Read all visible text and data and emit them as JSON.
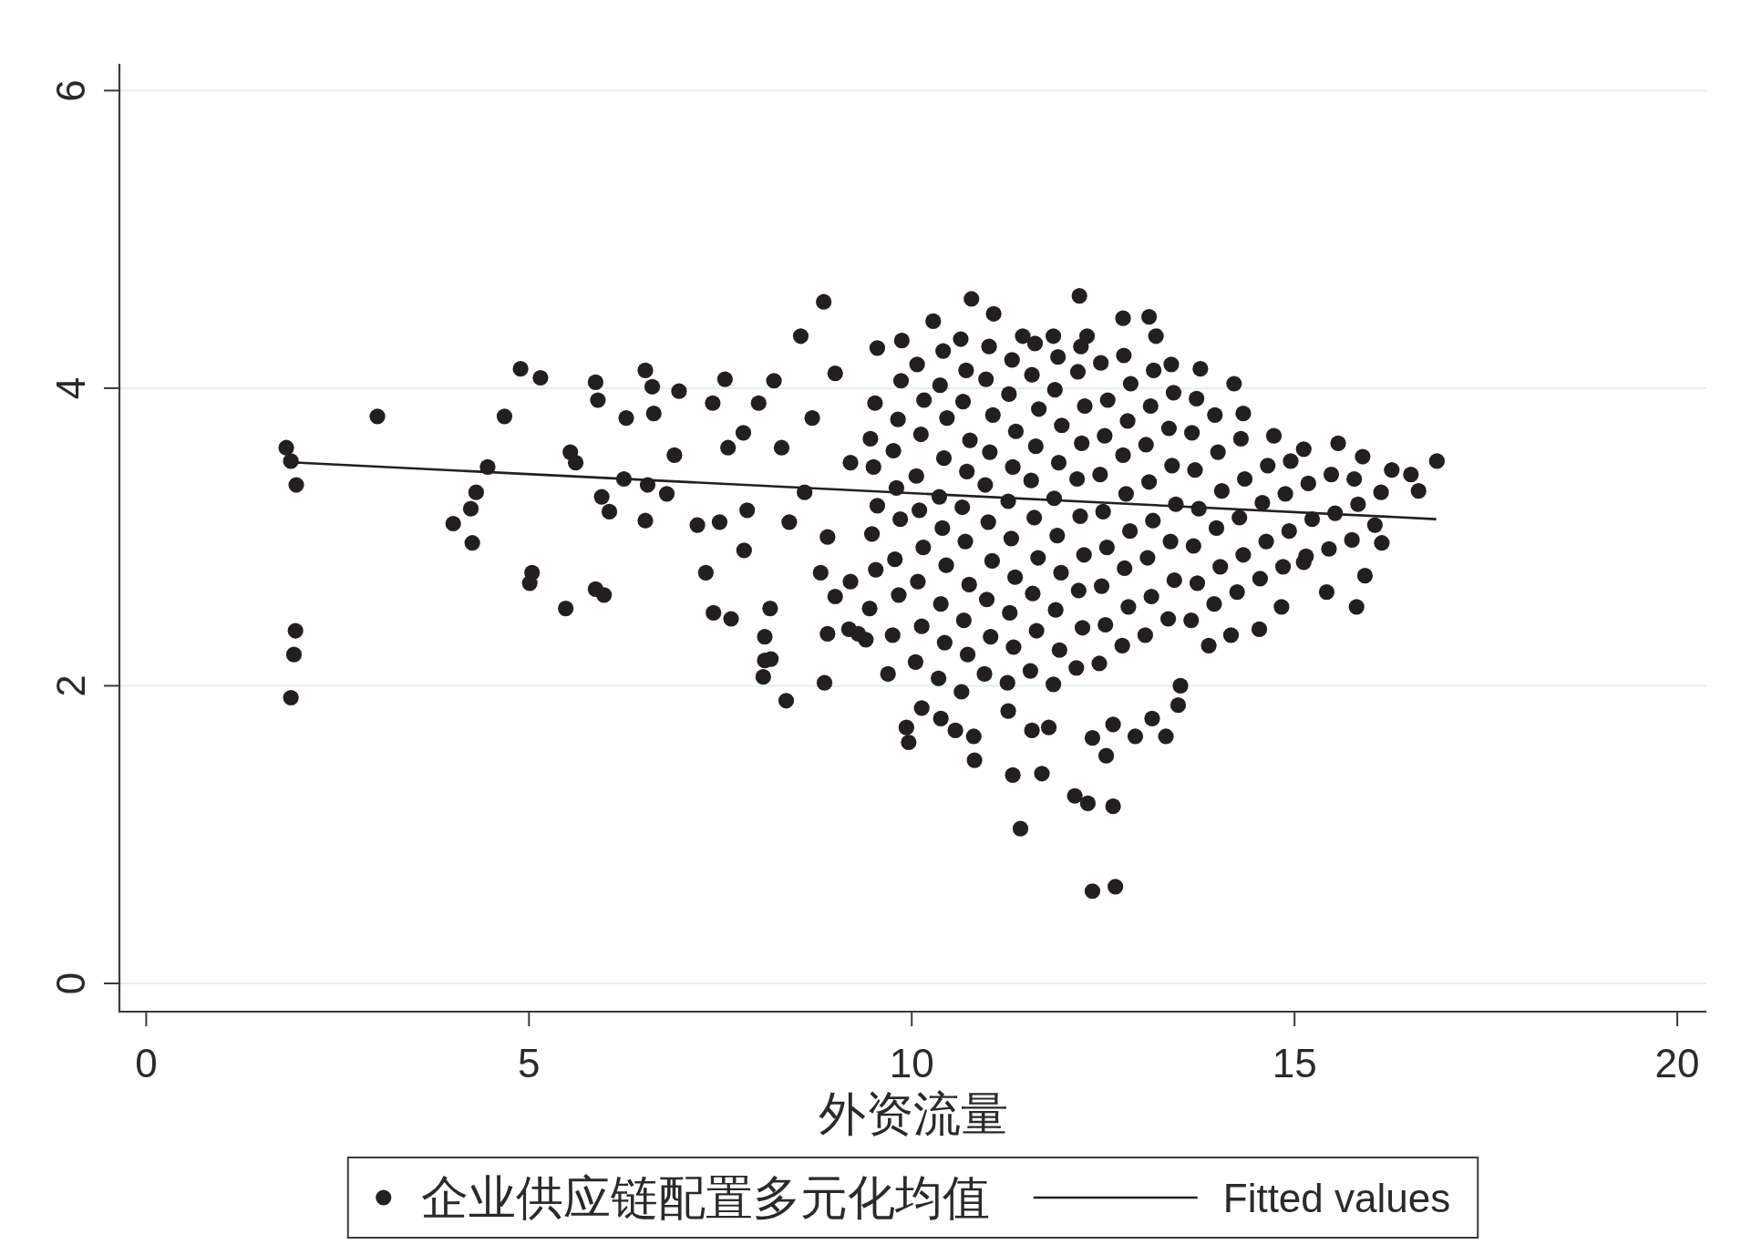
{
  "chart_data": {
    "type": "scatter",
    "xlabel": "外资流量",
    "xlim": [
      -0.35,
      20.38
    ],
    "ylim": [
      -0.19,
      6.18
    ],
    "xticks": [
      0,
      5,
      10,
      15,
      20
    ],
    "yticks": [
      0,
      2,
      4,
      6
    ],
    "grid": "y",
    "legend": "bottom",
    "series": [
      {
        "name": "企业供应链配置多元化均值",
        "type": "scatter",
        "marker": "circle",
        "color": "#231f20",
        "x": [
          1.83,
          1.89,
          1.96,
          1.95,
          1.93,
          1.89,
          3.02,
          4.01,
          4.24,
          4.31,
          4.46,
          4.26,
          4.68,
          4.89,
          5.15,
          5.01,
          5.04,
          5.48,
          5.54,
          5.61,
          5.87,
          5.9,
          5.87,
          5.98,
          5.95,
          6.05,
          6.24,
          6.27,
          6.52,
          6.61,
          6.63,
          6.52,
          6.55,
          6.9,
          6.96,
          6.8,
          7.31,
          7.41,
          7.64,
          7.2,
          7.56,
          7.49,
          8.06,
          8.08,
          8.15,
          8.36,
          8.16,
          8.08,
          8.85,
          8.86,
          7.81,
          7.85,
          8.55,
          8.0,
          8.3,
          8.6,
          8.9,
          9.2,
          8.2,
          8.7,
          9.0,
          9.2,
          7.8,
          8.4,
          9.0,
          7.4,
          7.6,
          8.9,
          9.3,
          9.55,
          9.87,
          10.28,
          10.78,
          11.07,
          11.45,
          11.85,
          12.19,
          12.29,
          12.76,
          13.1,
          13.19,
          13.39,
          13.77,
          14.21,
          14.33,
          14.73,
          15.12,
          15.57,
          15.89,
          16.27,
          16.52,
          16.86,
          16.62,
          16.14,
          15.92,
          15.81,
          15.42,
          15.12,
          14.83,
          14.54,
          14.17,
          13.88,
          13.51,
          13.48,
          13.32,
          13.14,
          12.92,
          12.63,
          12.63,
          12.66,
          12.36,
          12.3,
          12.13,
          12.54,
          12.36,
          11.7,
          11.42,
          11.32,
          11.57,
          11.79,
          11.26,
          10.82,
          10.81,
          10.57,
          10.38,
          10.13,
          9.96,
          9.93,
          9.69,
          9.4,
          9.18,
          8.81,
          9.45,
          9.53,
          9.48,
          9.55,
          9.5,
          9.46,
          9.52,
          9.75,
          9.83,
          9.78,
          9.85,
          9.8,
          9.76,
          9.82,
          9.86,
          10.05,
          10.13,
          10.08,
          10.15,
          10.1,
          10.06,
          10.12,
          10.16,
          10.07,
          10.35,
          10.43,
          10.38,
          10.45,
          10.4,
          10.36,
          10.42,
          10.46,
          10.37,
          10.41,
          10.65,
          10.73,
          10.68,
          10.75,
          10.7,
          10.66,
          10.72,
          10.76,
          10.67,
          10.71,
          10.64,
          10.95,
          11.03,
          10.98,
          11.05,
          11.0,
          10.96,
          11.02,
          11.06,
          10.97,
          11.01,
          11.25,
          11.33,
          11.28,
          11.35,
          11.3,
          11.26,
          11.32,
          11.36,
          11.27,
          11.31,
          11.55,
          11.63,
          11.58,
          11.65,
          11.6,
          11.56,
          11.62,
          11.66,
          11.57,
          11.61,
          11.85,
          11.93,
          11.88,
          11.95,
          11.9,
          11.86,
          11.92,
          11.96,
          11.87,
          11.91,
          12.15,
          12.23,
          12.18,
          12.25,
          12.2,
          12.16,
          12.22,
          12.26,
          12.17,
          12.21,
          12.45,
          12.53,
          12.48,
          12.55,
          12.5,
          12.46,
          12.52,
          12.56,
          12.47,
          12.75,
          12.83,
          12.78,
          12.85,
          12.8,
          12.76,
          12.82,
          12.86,
          12.77,
          13.05,
          13.13,
          13.08,
          13.15,
          13.1,
          13.06,
          13.12,
          13.16,
          13.35,
          13.43,
          13.38,
          13.45,
          13.4,
          13.36,
          13.42,
          13.65,
          13.73,
          13.68,
          13.75,
          13.7,
          13.66,
          13.72,
          13.95,
          14.03,
          13.98,
          14.05,
          14.0,
          13.96,
          14.25,
          14.33,
          14.28,
          14.35,
          14.3,
          14.55,
          14.63,
          14.58,
          14.65,
          14.85,
          14.93,
          14.88,
          14.95,
          15.15,
          15.23,
          15.18,
          15.45,
          15.53,
          15.48,
          15.75,
          15.83,
          15.78,
          16.05,
          16.13
        ],
        "values": [
          3.6,
          3.51,
          3.35,
          2.37,
          2.21,
          1.92,
          3.81,
          3.09,
          3.19,
          3.3,
          3.47,
          2.96,
          3.81,
          4.13,
          4.07,
          2.69,
          2.76,
          2.52,
          3.57,
          3.5,
          4.04,
          3.92,
          2.65,
          2.61,
          3.27,
          3.17,
          3.39,
          3.8,
          4.12,
          4.01,
          3.83,
          3.11,
          3.35,
          3.55,
          3.98,
          3.29,
          2.76,
          2.49,
          2.45,
          3.08,
          4.06,
          3.1,
          2.06,
          2.17,
          2.52,
          1.9,
          2.18,
          2.33,
          4.58,
          2.02,
          2.91,
          3.18,
          4.35,
          3.9,
          3.6,
          3.3,
          3.0,
          2.7,
          4.05,
          3.8,
          4.1,
          3.5,
          3.7,
          3.1,
          2.6,
          3.9,
          3.6,
          2.35,
          2.35,
          4.27,
          4.32,
          4.45,
          4.6,
          4.5,
          4.35,
          4.35,
          4.62,
          4.35,
          4.47,
          4.48,
          4.35,
          4.16,
          4.13,
          4.03,
          3.83,
          3.68,
          3.59,
          3.63,
          3.54,
          3.45,
          3.42,
          3.51,
          3.31,
          2.96,
          2.74,
          2.53,
          2.63,
          2.83,
          2.53,
          2.38,
          2.34,
          2.27,
          2.0,
          1.87,
          1.66,
          1.78,
          1.66,
          1.74,
          1.19,
          0.65,
          0.62,
          1.21,
          1.26,
          1.53,
          1.65,
          1.41,
          1.04,
          1.4,
          1.7,
          1.72,
          1.83,
          1.5,
          1.66,
          1.7,
          1.78,
          1.85,
          1.62,
          1.72,
          2.08,
          2.31,
          2.38,
          2.76,
          2.52,
          2.78,
          3.02,
          3.21,
          3.47,
          3.66,
          3.9,
          2.34,
          2.61,
          2.85,
          3.12,
          3.33,
          3.58,
          3.79,
          4.05,
          2.16,
          2.4,
          2.7,
          2.93,
          3.18,
          3.41,
          3.69,
          3.92,
          4.16,
          2.05,
          2.29,
          2.55,
          2.81,
          3.06,
          3.27,
          3.53,
          3.8,
          4.02,
          4.25,
          1.96,
          2.21,
          2.44,
          2.68,
          2.97,
          3.2,
          3.44,
          3.65,
          3.91,
          4.12,
          4.33,
          2.08,
          2.33,
          2.58,
          2.84,
          3.1,
          3.35,
          3.57,
          3.82,
          4.06,
          4.28,
          2.02,
          2.26,
          2.49,
          2.73,
          2.99,
          3.24,
          3.47,
          3.71,
          3.96,
          4.19,
          2.1,
          2.37,
          2.62,
          2.86,
          3.13,
          3.38,
          3.61,
          3.86,
          4.09,
          4.3,
          2.01,
          2.24,
          2.51,
          2.76,
          3.01,
          3.26,
          3.5,
          3.75,
          3.99,
          4.21,
          2.12,
          2.39,
          2.64,
          2.88,
          3.14,
          3.39,
          3.63,
          3.88,
          4.11,
          4.28,
          2.15,
          2.41,
          2.67,
          2.93,
          3.17,
          3.42,
          3.68,
          3.92,
          4.17,
          2.27,
          2.53,
          2.79,
          3.04,
          3.29,
          3.55,
          3.78,
          4.03,
          4.22,
          2.34,
          2.6,
          2.86,
          3.11,
          3.37,
          3.62,
          3.88,
          4.12,
          2.45,
          2.71,
          2.97,
          3.22,
          3.48,
          3.73,
          3.97,
          2.44,
          2.69,
          2.94,
          3.19,
          3.45,
          3.7,
          3.93,
          2.55,
          2.8,
          3.06,
          3.31,
          3.57,
          3.82,
          2.63,
          2.88,
          3.13,
          3.39,
          3.66,
          2.72,
          2.97,
          3.23,
          3.48,
          2.8,
          3.04,
          3.29,
          3.51,
          2.87,
          3.12,
          3.36,
          2.92,
          3.16,
          3.42,
          2.98,
          3.22,
          3.39,
          3.08,
          3.3
        ]
      },
      {
        "name": "Fitted values",
        "type": "line",
        "color": "#231f20",
        "x": [
          1.95,
          16.85
        ],
        "values": [
          3.5,
          3.12
        ]
      }
    ]
  }
}
